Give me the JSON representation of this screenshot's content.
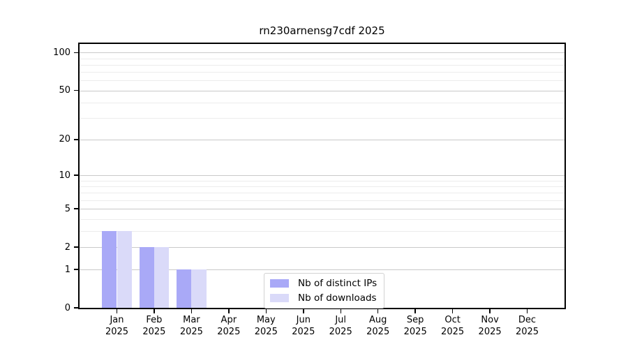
{
  "title": "rn230arnensg7cdf 2025",
  "chart_data": {
    "type": "bar",
    "title": "rn230arnensg7cdf 2025",
    "categories": [
      "Jan",
      "Feb",
      "Mar",
      "Apr",
      "May",
      "Jun",
      "Jul",
      "Aug",
      "Sep",
      "Oct",
      "Nov",
      "Dec"
    ],
    "category_year": "2025",
    "series": [
      {
        "name": "Nb of distinct IPs",
        "color": "#a9a9f7",
        "values": [
          3,
          2,
          1,
          0,
          0,
          0,
          0,
          0,
          0,
          0,
          0,
          0
        ]
      },
      {
        "name": "Nb of downloads",
        "color": "#dadaf9",
        "values": [
          3,
          2,
          1,
          0,
          0,
          0,
          0,
          0,
          0,
          0,
          0,
          0
        ]
      }
    ],
    "yscale": "log1p",
    "ylim": [
      0,
      117
    ],
    "y_major_ticks": [
      0,
      1,
      2,
      5,
      10,
      20,
      50,
      100
    ],
    "y_minor_gridlines": [
      3,
      4,
      6,
      7,
      8,
      9,
      30,
      40,
      60,
      70,
      80,
      90
    ],
    "grid": true,
    "legend_position": "lower center",
    "xlabel": "",
    "ylabel": ""
  },
  "colors": {
    "background": "#ffffff",
    "axis": "#000000",
    "grid_major": "#c9c9c9",
    "grid_minor": "#ececec",
    "legend_border": "#d2d2d2",
    "text": "#000000"
  }
}
